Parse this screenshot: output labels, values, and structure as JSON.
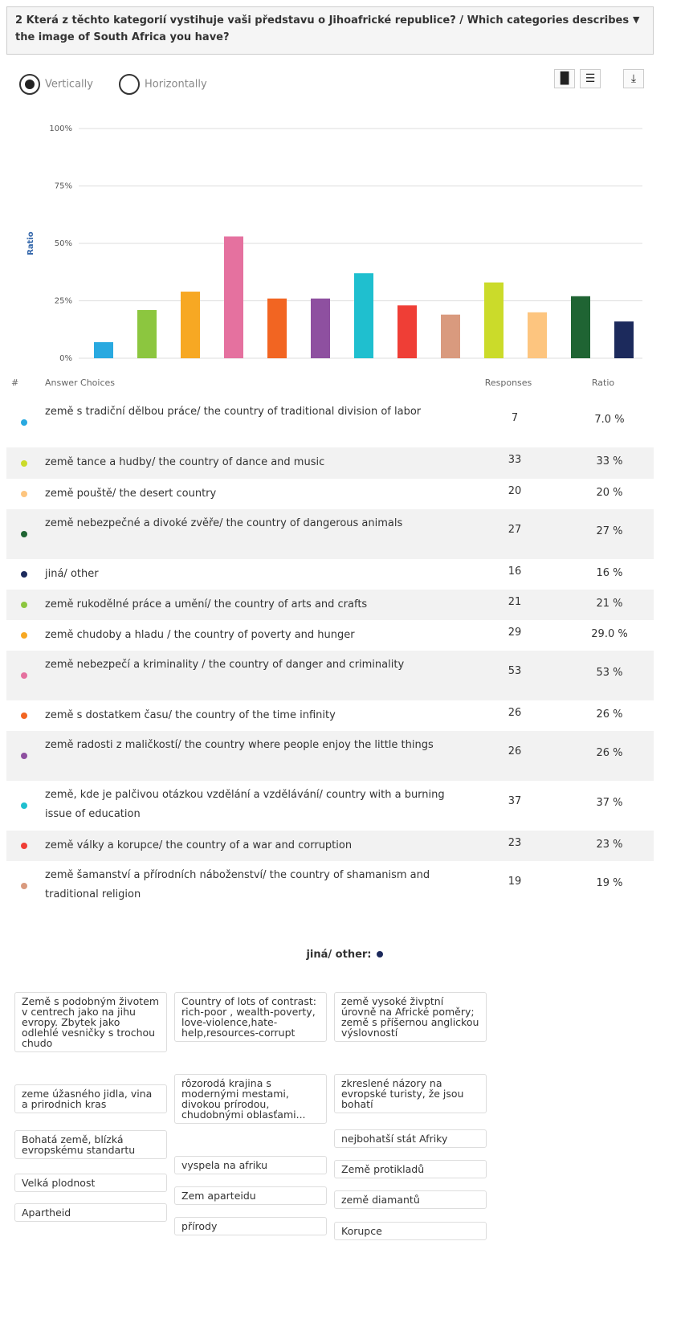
{
  "question": "2 Která z těchto kategorií vystihuje vaši představu o Jihoafrické republice? / Which categories describes the image of South Africa you have?",
  "orientation": {
    "options": [
      "Vertically",
      "Horizontally"
    ],
    "selected": 0
  },
  "chart_data": {
    "type": "bar",
    "y_label": "Ratio",
    "categories": [
      null,
      null,
      null,
      null,
      null,
      null,
      null,
      null,
      null,
      null,
      null,
      null,
      null
    ],
    "values": [
      7,
      21,
      29,
      53,
      26,
      26,
      37,
      23,
      19,
      33,
      20,
      27,
      16
    ],
    "colors": [
      "#29a9e0",
      "#8cc63f",
      "#f7a823",
      "#e5719f",
      "#f26522",
      "#8e50a0",
      "#1fbfcf",
      "#ef3e36",
      "#d99a7e",
      "#cbdb2a",
      "#fdc57f",
      "#1f6433",
      "#1c2a5c"
    ],
    "ylim": [
      0,
      100
    ],
    "yticks": [
      {
        "value": 0,
        "label": "0%"
      },
      {
        "value": 25,
        "label": "25%"
      },
      {
        "value": 50,
        "label": "50%"
      },
      {
        "value": 75,
        "label": "75%"
      },
      {
        "value": 100,
        "label": "100%"
      }
    ],
    "grid": true
  },
  "table": {
    "headers": [
      "#",
      "Answer Choices",
      "Responses",
      "Ratio"
    ],
    "rows": [
      {
        "color": "#29a9e0",
        "text": "země s tradiční dělbou práce/ the country of traditional division of labor",
        "responses": "7",
        "ratio": "7.0 %"
      },
      {
        "color": "#cbdb2a",
        "text": "země tance a hudby/ the country of dance and music",
        "responses": "33",
        "ratio": "33 %"
      },
      {
        "color": "#fdc57f",
        "text": "země pouště/ the desert country",
        "responses": "20",
        "ratio": "20 %"
      },
      {
        "color": "#1f6433",
        "text": "země nebezpečné a divoké zvěře/ the country of dangerous animals",
        "responses": "27",
        "ratio": "27 %"
      },
      {
        "color": "#1c2a5c",
        "text": "jiná/ other",
        "responses": "16",
        "ratio": "16 %"
      },
      {
        "color": "#8cc63f",
        "text": "země rukodělné práce a umění/ the country of arts and crafts",
        "responses": "21",
        "ratio": "21 %"
      },
      {
        "color": "#f7a823",
        "text": "země chudoby a hladu / the country of poverty and hunger",
        "responses": "29",
        "ratio": "29.0 %"
      },
      {
        "color": "#e5719f",
        "text": "země nebezpečí a kriminality / the country of danger and criminality",
        "responses": "53",
        "ratio": "53 %"
      },
      {
        "color": "#f26522",
        "text": "země s dostatkem času/ the country of the time infinity",
        "responses": "26",
        "ratio": "26 %"
      },
      {
        "color": "#8e50a0",
        "text": "země radosti z maličkostí/ the country where people enjoy the little things",
        "responses": "26",
        "ratio": "26 %"
      },
      {
        "color": "#1fbfcf",
        "text": "země, kde je palčivou otázkou vzdělání a vzdělávání/ country with a burning issue of education",
        "responses": "37",
        "ratio": "37 %"
      },
      {
        "color": "#ef3e36",
        "text": "země války a korupce/ the country of a war and corruption",
        "responses": "23",
        "ratio": "23 %"
      },
      {
        "color": "#d99a7e",
        "text": "země šamanství a přírodních náboženství/ the country of shamanism and traditional religion",
        "responses": "19",
        "ratio": "19 %"
      }
    ]
  },
  "other": {
    "title": "jiná/ other:",
    "color": "#1c2a5c",
    "columns": [
      [
        "Země s podobným životem v centrech jako na jihu evropy. Zbytek jako odlehlé vesničky s trochou chudo",
        "zeme úžasného jidla, vina a prirodnich kras",
        "Bohatá země, blízká evropskému standartu",
        "Velká plodnost",
        "Apartheid"
      ],
      [
        "Country of lots of contrast: rich-poor , wealth-poverty, love-violence,hate-help,resources-corrupt",
        "rôzorodá krajina s modernými mestami, divokou prírodou, chudobnými oblasťami...",
        "vyspela na afriku",
        "Zem aparteidu",
        "přírody"
      ],
      [
        "země vysoké živptní úrovně na Africké poměry; země s příšernou anglickou výslovností",
        "zkreslené názory na evropské turisty, že jsou bohatí",
        "nejbohatší stát Afriky",
        "Země protikladů",
        "země diamantů",
        "Korupce"
      ]
    ]
  }
}
